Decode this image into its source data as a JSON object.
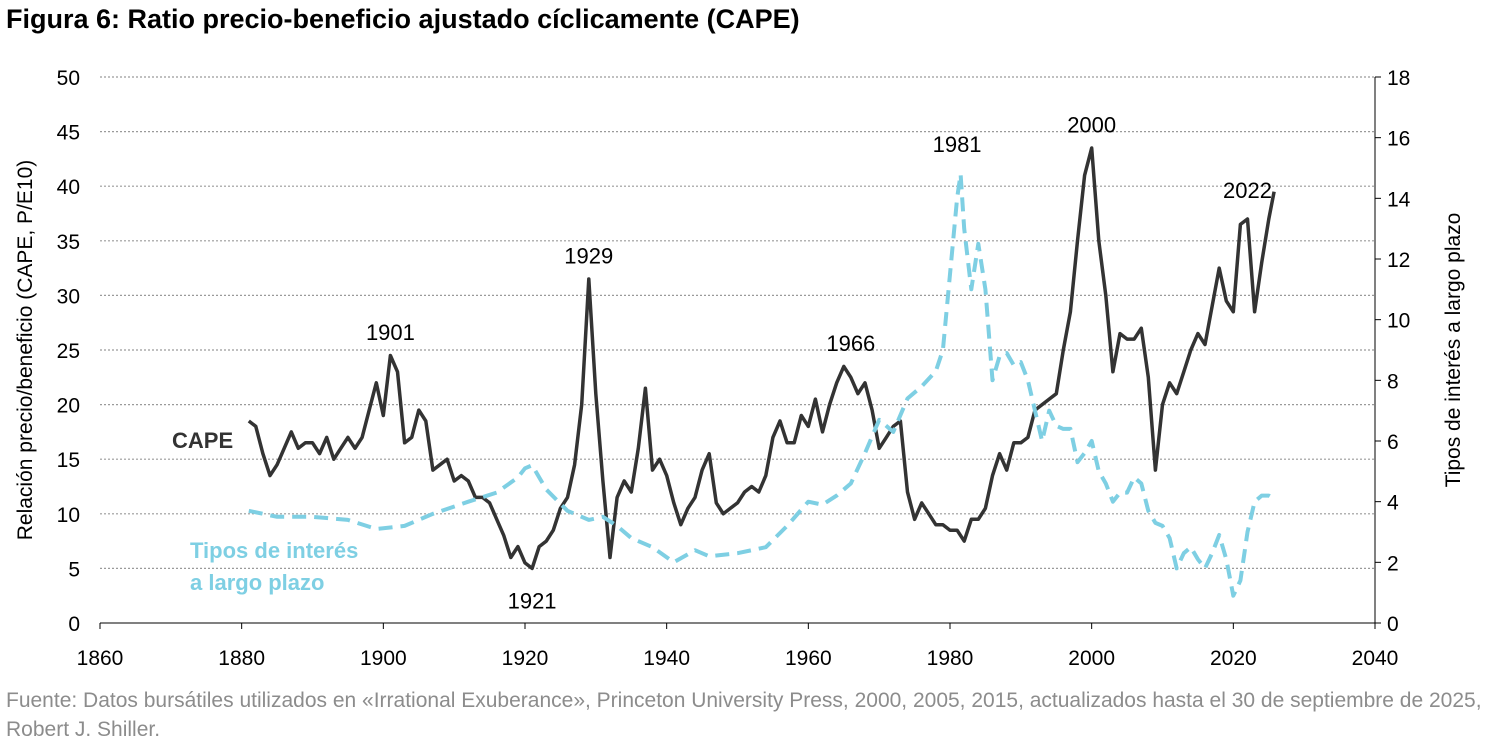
{
  "title": "Figura 6: Ratio precio-beneficio ajustado cíclicamente (CAPE)",
  "source": "Fuente: Datos bursátiles utilizados en «Irrational Exuberance», Princeton University Press, 2000, 2005, 2015, actualizados hasta el 30 de septiembre de 2025, Robert J. Shiller.",
  "colors": {
    "cape": "#333333",
    "rates": "#7ecfe3",
    "grid": "#9a9a9a"
  },
  "chart_data": {
    "type": "line",
    "grid": true,
    "ylabel": "Relación precio/beneficio (CAPE, P/E10)",
    "y2label": "Tipos de interés a largo plazo",
    "xlim": [
      1860,
      2040
    ],
    "ylim": [
      0,
      50
    ],
    "y2lim": [
      0,
      18
    ],
    "x_ticks": [
      "1860",
      "1880",
      "1900",
      "1920",
      "1940",
      "1960",
      "1980",
      "2000",
      "2020",
      "2040"
    ],
    "y_ticks": [
      "0",
      "5",
      "10",
      "15",
      "20",
      "25",
      "30",
      "35",
      "40",
      "45",
      "50"
    ],
    "y2_ticks": [
      "0",
      "2",
      "4",
      "6",
      "8",
      "10",
      "12",
      "14",
      "16",
      "18"
    ],
    "series": [
      {
        "name": "CAPE",
        "axis": "left",
        "style": "solid",
        "points": [
          [
            1881,
            18.5
          ],
          [
            1882,
            18.0
          ],
          [
            1883,
            15.5
          ],
          [
            1884,
            13.5
          ],
          [
            1885,
            14.5
          ],
          [
            1886,
            16.0
          ],
          [
            1887,
            17.5
          ],
          [
            1888,
            16.0
          ],
          [
            1889,
            16.5
          ],
          [
            1890,
            16.5
          ],
          [
            1891,
            15.5
          ],
          [
            1892,
            17.0
          ],
          [
            1893,
            15.0
          ],
          [
            1894,
            16.0
          ],
          [
            1895,
            17.0
          ],
          [
            1896,
            16.0
          ],
          [
            1897,
            17.0
          ],
          [
            1898,
            19.5
          ],
          [
            1899,
            22.0
          ],
          [
            1900,
            19.0
          ],
          [
            1901,
            24.5
          ],
          [
            1902,
            23.0
          ],
          [
            1903,
            16.5
          ],
          [
            1904,
            17.0
          ],
          [
            1905,
            19.5
          ],
          [
            1906,
            18.5
          ],
          [
            1907,
            14.0
          ],
          [
            1908,
            14.5
          ],
          [
            1909,
            15.0
          ],
          [
            1910,
            13.0
          ],
          [
            1911,
            13.5
          ],
          [
            1912,
            13.0
          ],
          [
            1913,
            11.5
          ],
          [
            1914,
            11.5
          ],
          [
            1915,
            11.0
          ],
          [
            1916,
            9.5
          ],
          [
            1917,
            8.0
          ],
          [
            1918,
            6.0
          ],
          [
            1919,
            7.0
          ],
          [
            1920,
            5.5
          ],
          [
            1921,
            5.0
          ],
          [
            1922,
            7.0
          ],
          [
            1923,
            7.5
          ],
          [
            1924,
            8.5
          ],
          [
            1925,
            10.5
          ],
          [
            1926,
            11.5
          ],
          [
            1927,
            14.5
          ],
          [
            1928,
            20.0
          ],
          [
            1929,
            31.5
          ],
          [
            1930,
            21.0
          ],
          [
            1931,
            13.0
          ],
          [
            1932,
            6.0
          ],
          [
            1933,
            11.5
          ],
          [
            1934,
            13.0
          ],
          [
            1935,
            12.0
          ],
          [
            1936,
            16.0
          ],
          [
            1937,
            21.5
          ],
          [
            1938,
            14.0
          ],
          [
            1939,
            15.0
          ],
          [
            1940,
            13.5
          ],
          [
            1941,
            11.0
          ],
          [
            1942,
            9.0
          ],
          [
            1943,
            10.5
          ],
          [
            1944,
            11.5
          ],
          [
            1945,
            14.0
          ],
          [
            1946,
            15.5
          ],
          [
            1947,
            11.0
          ],
          [
            1948,
            10.0
          ],
          [
            1949,
            10.5
          ],
          [
            1950,
            11.0
          ],
          [
            1951,
            12.0
          ],
          [
            1952,
            12.5
          ],
          [
            1953,
            12.0
          ],
          [
            1954,
            13.5
          ],
          [
            1955,
            17.0
          ],
          [
            1956,
            18.5
          ],
          [
            1957,
            16.5
          ],
          [
            1958,
            16.5
          ],
          [
            1959,
            19.0
          ],
          [
            1960,
            18.0
          ],
          [
            1961,
            20.5
          ],
          [
            1962,
            17.5
          ],
          [
            1963,
            20.0
          ],
          [
            1964,
            22.0
          ],
          [
            1965,
            23.5
          ],
          [
            1966,
            22.5
          ],
          [
            1967,
            21.0
          ],
          [
            1968,
            22.0
          ],
          [
            1969,
            19.5
          ],
          [
            1970,
            16.0
          ],
          [
            1971,
            17.0
          ],
          [
            1972,
            18.0
          ],
          [
            1973,
            18.5
          ],
          [
            1974,
            12.0
          ],
          [
            1975,
            9.5
          ],
          [
            1976,
            11.0
          ],
          [
            1977,
            10.0
          ],
          [
            1978,
            9.0
          ],
          [
            1979,
            9.0
          ],
          [
            1980,
            8.5
          ],
          [
            1981,
            8.5
          ],
          [
            1982,
            7.5
          ],
          [
            1983,
            9.5
          ],
          [
            1984,
            9.5
          ],
          [
            1985,
            10.5
          ],
          [
            1986,
            13.5
          ],
          [
            1987,
            15.5
          ],
          [
            1988,
            14.0
          ],
          [
            1989,
            16.5
          ],
          [
            1990,
            16.5
          ],
          [
            1991,
            17.0
          ],
          [
            1992,
            19.5
          ],
          [
            1993,
            20.0
          ],
          [
            1994,
            20.5
          ],
          [
            1995,
            21.0
          ],
          [
            1996,
            25.0
          ],
          [
            1997,
            28.5
          ],
          [
            1998,
            35.0
          ],
          [
            1999,
            41.0
          ],
          [
            2000,
            43.5
          ],
          [
            2001,
            35.0
          ],
          [
            2002,
            30.0
          ],
          [
            2003,
            23.0
          ],
          [
            2004,
            26.5
          ],
          [
            2005,
            26.0
          ],
          [
            2006,
            26.0
          ],
          [
            2007,
            27.0
          ],
          [
            2008,
            22.5
          ],
          [
            2009,
            14.0
          ],
          [
            2010,
            20.0
          ],
          [
            2011,
            22.0
          ],
          [
            2012,
            21.0
          ],
          [
            2013,
            23.0
          ],
          [
            2014,
            25.0
          ],
          [
            2015,
            26.5
          ],
          [
            2016,
            25.5
          ],
          [
            2017,
            29.0
          ],
          [
            2018,
            32.5
          ],
          [
            2019,
            29.5
          ],
          [
            2020,
            28.5
          ],
          [
            2021,
            36.5
          ],
          [
            2022,
            37.0
          ],
          [
            2023,
            28.5
          ],
          [
            2024,
            33.0
          ],
          [
            2025,
            37.0
          ],
          [
            2025.75,
            39.5
          ]
        ]
      },
      {
        "name": "Tipos de interés a largo plazo",
        "axis": "right",
        "style": "dashed",
        "points": [
          [
            1881,
            3.7
          ],
          [
            1885,
            3.5
          ],
          [
            1890,
            3.5
          ],
          [
            1895,
            3.4
          ],
          [
            1899,
            3.1
          ],
          [
            1903,
            3.2
          ],
          [
            1907,
            3.6
          ],
          [
            1912,
            4.0
          ],
          [
            1916,
            4.3
          ],
          [
            1919,
            4.8
          ],
          [
            1920,
            5.1
          ],
          [
            1921,
            5.2
          ],
          [
            1923,
            4.4
          ],
          [
            1926,
            3.7
          ],
          [
            1929,
            3.4
          ],
          [
            1931,
            3.5
          ],
          [
            1933,
            3.2
          ],
          [
            1935,
            2.8
          ],
          [
            1938,
            2.5
          ],
          [
            1941,
            2.0
          ],
          [
            1944,
            2.4
          ],
          [
            1946,
            2.2
          ],
          [
            1950,
            2.3
          ],
          [
            1954,
            2.5
          ],
          [
            1957,
            3.2
          ],
          [
            1960,
            4.0
          ],
          [
            1962,
            3.9
          ],
          [
            1964,
            4.2
          ],
          [
            1966,
            4.6
          ],
          [
            1968,
            5.6
          ],
          [
            1970,
            6.7
          ],
          [
            1972,
            6.3
          ],
          [
            1974,
            7.4
          ],
          [
            1976,
            7.8
          ],
          [
            1978,
            8.3
          ],
          [
            1979,
            9.0
          ],
          [
            1980,
            11.5
          ],
          [
            1981,
            14.0
          ],
          [
            1981.5,
            14.8
          ],
          [
            1982,
            13.0
          ],
          [
            1983,
            11.0
          ],
          [
            1984,
            12.5
          ],
          [
            1985,
            11.0
          ],
          [
            1986,
            8.0
          ],
          [
            1987,
            8.8
          ],
          [
            1988,
            8.9
          ],
          [
            1989,
            8.5
          ],
          [
            1990,
            8.6
          ],
          [
            1991,
            8.0
          ],
          [
            1992,
            7.0
          ],
          [
            1993,
            6.0
          ],
          [
            1994,
            7.0
          ],
          [
            1995,
            6.5
          ],
          [
            1996,
            6.4
          ],
          [
            1997,
            6.4
          ],
          [
            1998,
            5.3
          ],
          [
            1999,
            5.6
          ],
          [
            2000,
            6.0
          ],
          [
            2001,
            5.0
          ],
          [
            2002,
            4.6
          ],
          [
            2003,
            4.0
          ],
          [
            2004,
            4.3
          ],
          [
            2005,
            4.3
          ],
          [
            2006,
            4.8
          ],
          [
            2007,
            4.6
          ],
          [
            2008,
            3.7
          ],
          [
            2009,
            3.3
          ],
          [
            2010,
            3.2
          ],
          [
            2011,
            2.8
          ],
          [
            2012,
            1.8
          ],
          [
            2013,
            2.3
          ],
          [
            2014,
            2.5
          ],
          [
            2015,
            2.1
          ],
          [
            2016,
            1.8
          ],
          [
            2017,
            2.3
          ],
          [
            2018,
            2.9
          ],
          [
            2019,
            2.1
          ],
          [
            2020,
            0.9
          ],
          [
            2021,
            1.4
          ],
          [
            2022,
            3.0
          ],
          [
            2023,
            4.0
          ],
          [
            2024,
            4.2
          ],
          [
            2025,
            4.2
          ],
          [
            2025.75,
            4.1
          ]
        ]
      }
    ],
    "annotations": [
      {
        "text": "1901",
        "x": 1901,
        "y": 25,
        "axis": "left"
      },
      {
        "text": "1921",
        "x": 1921,
        "y": 5,
        "axis": "left"
      },
      {
        "text": "1929",
        "x": 1929,
        "y": 32,
        "axis": "left"
      },
      {
        "text": "1966",
        "x": 1966,
        "y": 24,
        "axis": "left"
      },
      {
        "text": "1981",
        "x": 1981,
        "y": 15.2,
        "axis": "right"
      },
      {
        "text": "2000",
        "x": 2000,
        "y": 44,
        "axis": "left"
      },
      {
        "text": "2022",
        "x": 2022,
        "y": 38,
        "axis": "left"
      }
    ],
    "series_labels": {
      "cape": "CAPE",
      "rates_line1": "Tipos de interés",
      "rates_line2": "a largo plazo"
    }
  }
}
